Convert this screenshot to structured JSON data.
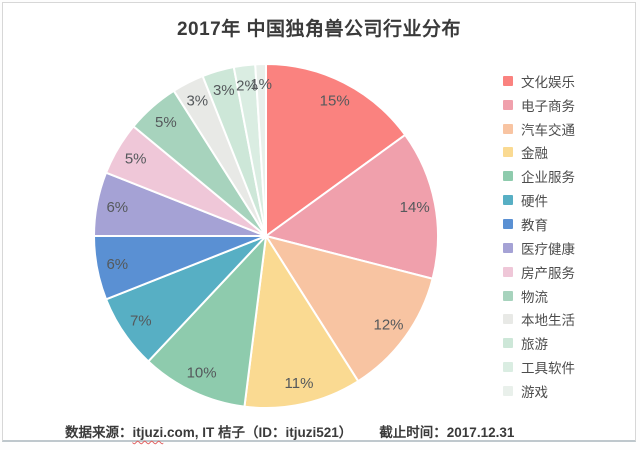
{
  "chart_data": {
    "type": "pie",
    "title": "2017年 中国独角兽公司行业分布",
    "legend_position": "right",
    "start_angle_deg": -90,
    "direction": "clockwise",
    "center": [
      263,
      233
    ],
    "radius": 172,
    "label_radius_ratio": 0.88,
    "unit": "%",
    "label_color": "#55595c",
    "series": [
      {
        "name": "文化娱乐",
        "value": 15,
        "label": "15%",
        "color": "#fa827f"
      },
      {
        "name": "电子商务",
        "value": 14,
        "label": "14%",
        "color": "#f0a0ac"
      },
      {
        "name": "汽车交通",
        "value": 12,
        "label": "12%",
        "color": "#f8c4a2"
      },
      {
        "name": "金融",
        "value": 11,
        "label": "11%",
        "color": "#fada92"
      },
      {
        "name": "企业服务",
        "value": 10,
        "label": "10%",
        "color": "#8ecbad"
      },
      {
        "name": "硬件",
        "value": 7,
        "label": "7%",
        "color": "#57afc4"
      },
      {
        "name": "教育",
        "value": 6,
        "label": "6%",
        "color": "#5a90d3"
      },
      {
        "name": "医疗健康",
        "value": 6,
        "label": "6%",
        "color": "#a5a2d5"
      },
      {
        "name": "房产服务",
        "value": 5,
        "label": "5%",
        "color": "#efc7d8"
      },
      {
        "name": "物流",
        "value": 5,
        "label": "5%",
        "color": "#a7d3bd"
      },
      {
        "name": "本地生活",
        "value": 3,
        "label": "3%",
        "color": "#e8e9e6"
      },
      {
        "name": "旅游",
        "value": 3,
        "label": "3%",
        "color": "#cde7d8"
      },
      {
        "name": "工具软件",
        "value": 2,
        "label": "2%",
        "color": "#daede2"
      },
      {
        "name": "游戏",
        "value": 1,
        "label": "1%",
        "color": "#e9f0eb"
      }
    ]
  },
  "footer": {
    "source_prefix": "数据来源：",
    "source_link": "itjuzi",
    "source_suffix": ".com, IT 桔子（ID：itjuzi521）",
    "deadline": "截止时间：2017.12.31"
  }
}
